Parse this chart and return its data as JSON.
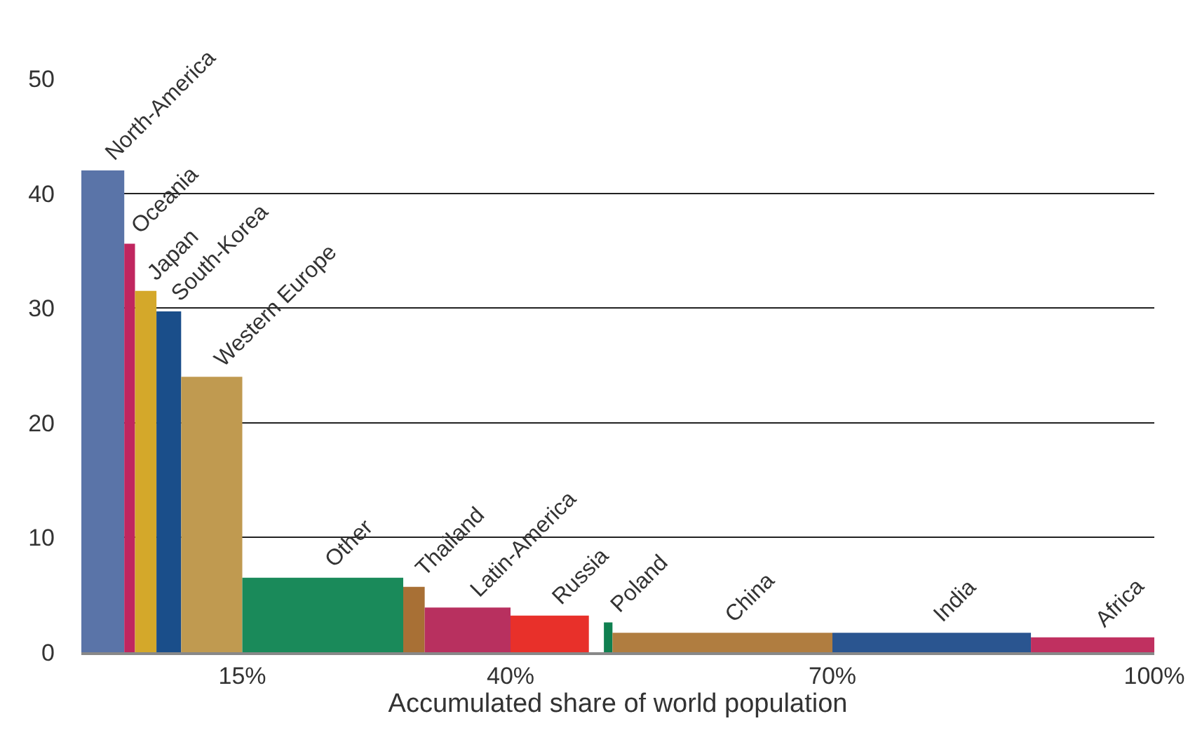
{
  "chart_data": {
    "type": "area",
    "xlabel": "Accumulated share of world population",
    "series": [
      {
        "name": "North-America",
        "color": "#5a74a8",
        "x": [
          0,
          4
        ],
        "values": [
          42,
          42
        ]
      },
      {
        "name": "Oceania",
        "color": "#c0265f",
        "x": [
          4,
          5
        ],
        "values": [
          35.6,
          35.6
        ]
      },
      {
        "name": "Japan",
        "color": "#d4a82a",
        "x": [
          5,
          7
        ],
        "values": [
          31.5,
          31.5
        ]
      },
      {
        "name": "South-Korea",
        "color": "#1a4e8a",
        "x": [
          7,
          9.3
        ],
        "values": [
          29.7,
          29.7
        ]
      },
      {
        "name": "Western Europe",
        "color": "#c09a50",
        "x": [
          9.3,
          15
        ],
        "values": [
          24,
          24
        ]
      },
      {
        "name": "Other",
        "color": "#1a8a5a",
        "x": [
          15,
          30
        ],
        "values": [
          6.5,
          6.5
        ]
      },
      {
        "name": "Thailand",
        "color": "#a87035",
        "x": [
          30,
          32
        ],
        "values": [
          5.7,
          5.7
        ]
      },
      {
        "name": "Latin-America",
        "color": "#b8305f",
        "x": [
          32,
          40
        ],
        "values": [
          3.9,
          3.9
        ]
      },
      {
        "name": "Russia",
        "color": "#e8302a",
        "x": [
          40,
          47.3
        ],
        "values": [
          3.2,
          3.2
        ]
      },
      {
        "name": "Poland",
        "color": "#108050",
        "x": [
          48.7,
          49.5
        ],
        "values": [
          2.6,
          2.6
        ]
      },
      {
        "name": "China",
        "color": "#b07d40",
        "x": [
          49.5,
          70
        ],
        "values": [
          1.7,
          1.7
        ]
      },
      {
        "name": "India",
        "color": "#2a5590",
        "x": [
          70,
          88.5
        ],
        "values": [
          1.7,
          1.7
        ]
      },
      {
        "name": "Africa",
        "color": "#c03060",
        "x": [
          88.5,
          100
        ],
        "values": [
          1.3,
          1.3
        ]
      }
    ],
    "xlim": [
      0,
      100
    ],
    "xticks": [
      {
        "value": 15,
        "label": "15%"
      },
      {
        "value": 40,
        "label": "40%"
      },
      {
        "value": 70,
        "label": "70%"
      },
      {
        "value": 100,
        "label": "100%"
      }
    ],
    "ylim": [
      0,
      50
    ],
    "yticks": [
      0,
      10,
      20,
      30,
      40,
      50
    ],
    "grid": "y",
    "legend": false
  }
}
